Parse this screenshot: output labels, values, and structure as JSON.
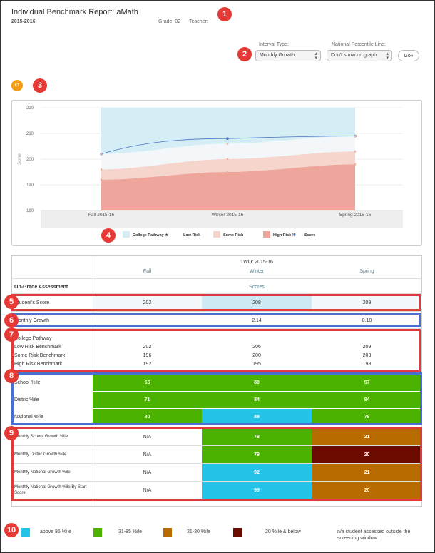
{
  "header": {
    "title": "Individual Benchmark Report: aMath",
    "year": "2015-2016",
    "grade": "Grade: 02",
    "teacher": "Teacher:"
  },
  "controls": {
    "interval_label": "Interval Type:",
    "interval_value": "Monthly Growth",
    "npl_label": "National Percentile Line:",
    "npl_value": "Don't show on graph",
    "go": "Go»"
  },
  "badges": [
    "1",
    "2",
    "3",
    "4",
    "5",
    "6",
    "7",
    "8",
    "9",
    "10"
  ],
  "kt": "KT",
  "chart_data": {
    "type": "area",
    "x": [
      "Fall 2015-16",
      "Winter 2015-16",
      "Spring 2015-16"
    ],
    "ylabel": "Score",
    "ylim": [
      180,
      220
    ],
    "yticks": [
      "220",
      "210",
      "200",
      "190",
      "180"
    ],
    "series": [
      {
        "name": "Score",
        "values": [
          202,
          208,
          209
        ]
      },
      {
        "name": "College Pathway",
        "values": [
          220,
          220,
          220
        ]
      },
      {
        "name": "Low Risk",
        "values": [
          202,
          206,
          209
        ]
      },
      {
        "name": "Some Risk",
        "values": [
          196,
          200,
          203
        ]
      },
      {
        "name": "High Risk",
        "values": [
          192,
          195,
          198
        ]
      }
    ],
    "legend": [
      "College Pathway ★",
      "Low Risk",
      "Some Risk !",
      "High Risk !!",
      "Score"
    ]
  },
  "colors": {
    "college": "#d5eef6",
    "low": "#f3f7fa",
    "some": "#f5d5cc",
    "high": "#eea69c",
    "score": "#4a74c9",
    "dkgreen": "#4cb200",
    "cyan": "#23c4e8",
    "brown": "#b86c00",
    "maroon": "#6b0b00"
  },
  "table": {
    "group_header": "TWO: 2015-16",
    "cols": [
      "Fall",
      "Winter",
      "Spring"
    ],
    "section": "On-Grade Assessment",
    "scores_label": "Scores",
    "student_score": {
      "label": "Student's Score",
      "values": [
        "202",
        "208",
        "209"
      ]
    },
    "monthly_growth": {
      "label": "Monthly Growth",
      "winter": "2.14",
      "spring": "0.18"
    },
    "benchmarks": [
      {
        "label": "College Pathway",
        "values": [
          "",
          "",
          ""
        ]
      },
      {
        "label": "Low Risk Benchmark",
        "values": [
          "202",
          "206",
          "209"
        ]
      },
      {
        "label": "Some Risk Benchmark",
        "values": [
          "196",
          "200",
          "203"
        ]
      },
      {
        "label": "High Risk Benchmark",
        "values": [
          "192",
          "195",
          "198"
        ]
      }
    ],
    "pct": [
      {
        "label": "School %ile",
        "values": [
          "65",
          "80",
          "57"
        ]
      },
      {
        "label": "Distric %ile",
        "values": [
          "71",
          "84",
          "84"
        ]
      },
      {
        "label": "National %ile",
        "values": [
          "80",
          "89",
          "78"
        ]
      }
    ],
    "growth": [
      {
        "label": "Monthly School Growth %ile",
        "values": [
          "N/A",
          "78",
          "21"
        ]
      },
      {
        "label": "Monthly Distric Growth %ile",
        "values": [
          "N/A",
          "79",
          "20"
        ]
      },
      {
        "label": "Monthly National Growth %ile",
        "values": [
          "N/A",
          "92",
          "21"
        ]
      },
      {
        "label": "Monthly National Growth %ile By Start Score",
        "values": [
          "N/A",
          "99",
          "20"
        ]
      }
    ]
  },
  "legend_bottom": [
    "above 85 %ile",
    "31-85 %ile",
    "21-30 %ile",
    "20 %ile & below",
    "n/a student assessed outside the screening window"
  ]
}
